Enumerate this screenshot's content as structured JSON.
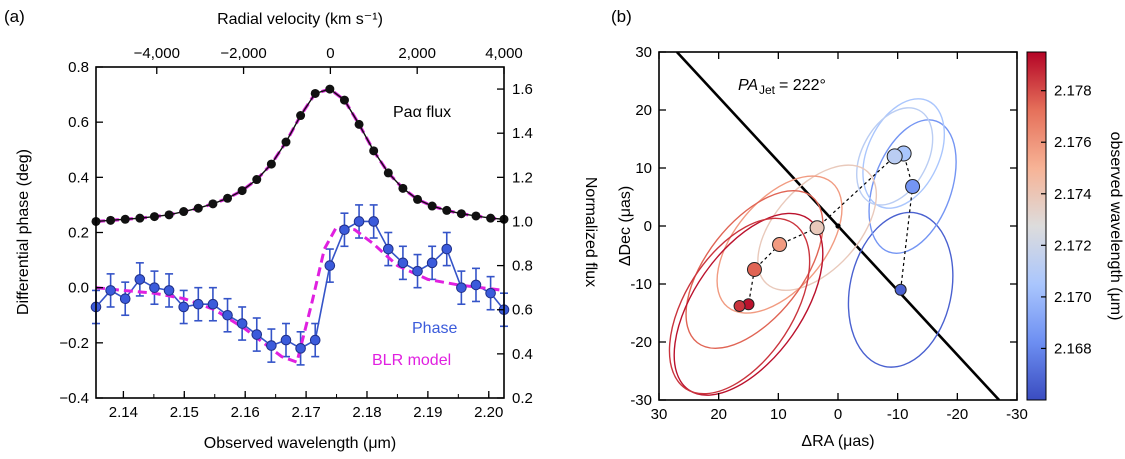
{
  "panels": [
    "(a)",
    "(b)"
  ],
  "chart_data": [
    {
      "panel": "(a)",
      "type": "line",
      "xlabel": "Observed wavelength (μm)",
      "ylabel": "Differential phase (deg)",
      "top_xlabel": "Radial velocity (km s⁻¹)",
      "right_ylabel": "Normalized flux",
      "xlim": [
        2.1355,
        2.2025
      ],
      "ylim": [
        -0.4,
        0.8
      ],
      "right_ylim": [
        0.2,
        1.7
      ],
      "top_xlim": [
        -5400,
        4000
      ],
      "x_ticks": [
        "2.14",
        "2.15",
        "2.16",
        "2.17",
        "2.18",
        "2.19",
        "2.20"
      ],
      "y_ticks": [
        "−0.4",
        "−0.2",
        "0.0",
        "0.2",
        "0.4",
        "0.6",
        "0.8"
      ],
      "right_y_ticks": [
        "0.2",
        "0.4",
        "0.6",
        "0.8",
        "1.0",
        "1.2",
        "1.4",
        "1.6"
      ],
      "top_x_ticks": [
        "−4,000",
        "−2,000",
        "0",
        "2,000",
        "4,000"
      ],
      "annotations": [
        "Paα flux",
        "Phase",
        "BLR model"
      ],
      "colors": {
        "flux": "#111111",
        "phase": "#3b5bdb",
        "phase_line": "#3554c8",
        "model": "#e020e0"
      },
      "series": [
        {
          "name": "Paα flux",
          "axis": "right",
          "x": [
            2.1355,
            2.1379,
            2.1403,
            2.1427,
            2.1451,
            2.1475,
            2.1499,
            2.1523,
            2.1547,
            2.1571,
            2.1595,
            2.1619,
            2.1643,
            2.1667,
            2.1691,
            2.1715,
            2.1739,
            2.1763,
            2.1787,
            2.1811,
            2.1835,
            2.1859,
            2.1883,
            2.1907,
            2.1931,
            2.1955,
            2.1979,
            2.2003,
            2.2025
          ],
          "values": [
            1.0,
            1.005,
            1.01,
            1.015,
            1.022,
            1.03,
            1.045,
            1.06,
            1.08,
            1.105,
            1.14,
            1.19,
            1.26,
            1.36,
            1.48,
            1.58,
            1.6,
            1.55,
            1.44,
            1.32,
            1.22,
            1.15,
            1.1,
            1.07,
            1.05,
            1.035,
            1.025,
            1.015,
            1.01
          ]
        },
        {
          "name": "Phase",
          "axis": "left",
          "x": [
            2.1355,
            2.1379,
            2.1403,
            2.1427,
            2.1451,
            2.1475,
            2.1499,
            2.1523,
            2.1547,
            2.1571,
            2.1595,
            2.1619,
            2.1643,
            2.1667,
            2.1691,
            2.1715,
            2.1739,
            2.1763,
            2.1787,
            2.1811,
            2.1835,
            2.1859,
            2.1883,
            2.1907,
            2.1931,
            2.1955,
            2.1979,
            2.2003,
            2.2025
          ],
          "values": [
            -0.07,
            -0.01,
            -0.04,
            0.03,
            0.0,
            -0.01,
            -0.07,
            -0.06,
            -0.06,
            -0.1,
            -0.13,
            -0.17,
            -0.21,
            -0.19,
            -0.22,
            -0.19,
            0.08,
            0.21,
            0.24,
            0.24,
            0.14,
            0.09,
            0.06,
            0.09,
            0.14,
            0.0,
            0.01,
            -0.02,
            -0.08
          ],
          "errors": [
            0.06,
            0.06,
            0.06,
            0.06,
            0.06,
            0.06,
            0.06,
            0.06,
            0.06,
            0.06,
            0.06,
            0.06,
            0.06,
            0.06,
            0.06,
            0.06,
            0.06,
            0.06,
            0.06,
            0.06,
            0.06,
            0.06,
            0.06,
            0.06,
            0.06,
            0.06,
            0.06,
            0.06,
            0.06
          ]
        },
        {
          "name": "BLR model",
          "axis": "left",
          "style": "dashed",
          "x": [
            2.1355,
            2.14,
            2.145,
            2.15,
            2.155,
            2.16,
            2.163,
            2.166,
            2.1685,
            2.171,
            2.173,
            2.175,
            2.178,
            2.181,
            2.185,
            2.19,
            2.195,
            2.2025
          ],
          "values": [
            0.0,
            -0.01,
            -0.02,
            -0.04,
            -0.08,
            -0.15,
            -0.2,
            -0.25,
            -0.27,
            -0.05,
            0.14,
            0.22,
            0.21,
            0.16,
            0.08,
            0.03,
            0.01,
            -0.01
          ]
        }
      ]
    },
    {
      "panel": "(b)",
      "type": "scatter",
      "xlabel": "ΔRA (μas)",
      "ylabel": "ΔDec (μas)",
      "xlim": [
        30,
        -30
      ],
      "ylim": [
        -30,
        30
      ],
      "x_ticks": [
        "30",
        "20",
        "10",
        "0",
        "-10",
        "-20",
        "-30"
      ],
      "y_ticks": [
        "-30",
        "-20",
        "-10",
        "0",
        "10",
        "20",
        "30"
      ],
      "annotation_main": "PA",
      "annotation_sub": "Jet",
      "annotation_value": " = 222°",
      "jet_line": [
        [
          27,
          30
        ],
        [
          -27,
          -30
        ]
      ],
      "origin_marker": [
        0,
        0
      ],
      "colorbar": {
        "label": "observed wavelength (μm)",
        "range": [
          2.166,
          2.1795
        ],
        "ticks": [
          "2.168",
          "2.170",
          "2.172",
          "2.174",
          "2.176",
          "2.178"
        ],
        "colors": [
          "#3a4cc0",
          "#6d8ff2",
          "#aac6fd",
          "#dddcdc",
          "#f7b396",
          "#e5705a",
          "#b40426"
        ]
      },
      "points": [
        {
          "x": -10.5,
          "y": -11.0,
          "wl": 2.1667,
          "err": [
            8.5,
            13.5,
            12
          ]
        },
        {
          "x": -12.5,
          "y": 6.8,
          "wl": 2.1685,
          "err": [
            6.5,
            12,
            20
          ]
        },
        {
          "x": -11.0,
          "y": 12.5,
          "wl": 2.1705,
          "err": [
            6,
            10,
            25
          ]
        },
        {
          "x": -9.5,
          "y": 12.0,
          "wl": 2.1712,
          "err": [
            5.5,
            9,
            28
          ]
        },
        {
          "x": 3.5,
          "y": -0.3,
          "wl": 2.1738,
          "err": [
            7,
            13,
            42
          ]
        },
        {
          "x": 9.8,
          "y": -3.2,
          "wl": 2.1758,
          "err": [
            7.5,
            14,
            40
          ]
        },
        {
          "x": 14.0,
          "y": -7.5,
          "wl": 2.1775,
          "err": [
            8,
            16,
            38
          ]
        },
        {
          "x": 15.0,
          "y": -13.5,
          "wl": 2.1792,
          "err": [
            9,
            18,
            35
          ]
        },
        {
          "x": 16.5,
          "y": -13.8,
          "wl": 2.1785,
          "err": [
            9,
            17,
            33
          ]
        }
      ],
      "path_order": [
        0,
        1,
        2,
        3,
        4,
        5,
        6,
        7,
        8
      ]
    }
  ]
}
